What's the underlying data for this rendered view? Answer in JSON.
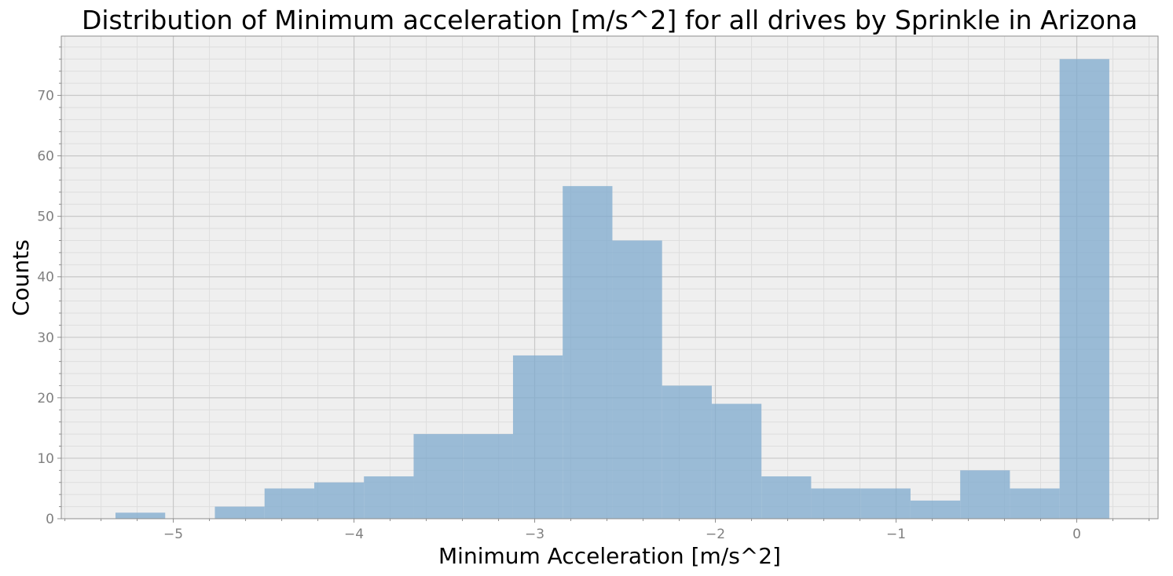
{
  "chart_data": {
    "type": "bar",
    "title": "Distribution of Minimum acceleration [m/s^2] for all drives by Sprinkle in Arizona",
    "xlabel": "Minimum Acceleration [m/s^2]",
    "ylabel": "Counts",
    "xlim": [
      -5.62,
      0.45
    ],
    "ylim": [
      0,
      79.8
    ],
    "grid": true,
    "bin_edges": [
      -5.32,
      -5.045,
      -4.77,
      -4.495,
      -4.22,
      -3.945,
      -3.67,
      -3.395,
      -3.12,
      -2.845,
      -2.57,
      -2.295,
      -2.02,
      -1.745,
      -1.47,
      -1.195,
      -0.92,
      -0.645,
      -0.37,
      -0.095,
      0.18
    ],
    "values": [
      1,
      0,
      2,
      5,
      6,
      7,
      14,
      14,
      27,
      55,
      46,
      22,
      19,
      7,
      5,
      5,
      3,
      8,
      5,
      76
    ],
    "x_ticks": [
      -5,
      -4,
      -3,
      -2,
      -1,
      0
    ],
    "x_tick_labels": [
      "−5",
      "−4",
      "−3",
      "−2",
      "−1",
      "0"
    ],
    "y_ticks": [
      0,
      10,
      20,
      30,
      40,
      50,
      60,
      70
    ],
    "y_tick_labels": [
      "0",
      "10",
      "20",
      "30",
      "40",
      "50",
      "60",
      "70"
    ],
    "colors": {
      "bar": "#7eaacd",
      "plot_background": "#efefef",
      "grid_major": "#c8c8c8",
      "grid_minor": "#dedede",
      "spine": "#8c8c8c",
      "tick_label": "#808080"
    }
  }
}
